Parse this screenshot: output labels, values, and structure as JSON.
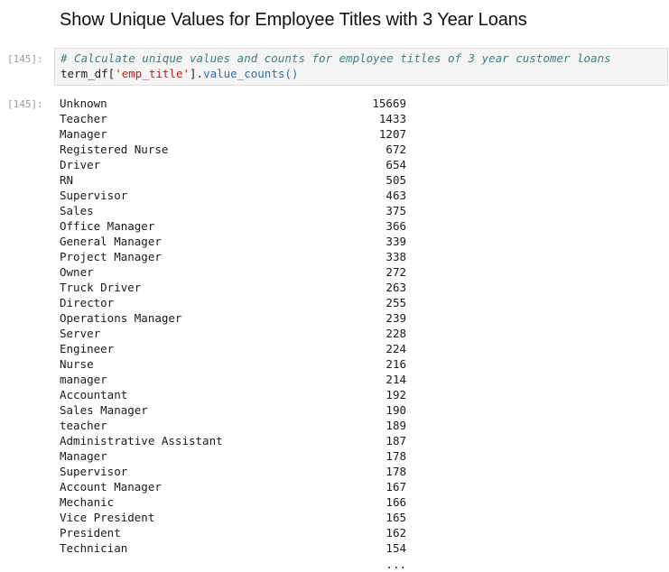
{
  "heading": "Show Unique Values for Employee Titles with 3 Year Loans",
  "input_prompt": "[145]:",
  "output_prompt": "[145]:",
  "code": {
    "comment": "# Calculate unique values and counts for employee titles of 3 year customer loans",
    "var": "term_df[",
    "key": "'emp_title'",
    "mid": "].",
    "method": "value_counts",
    "parens": "()"
  },
  "rows": [
    {
      "title": "Unknown",
      "count": "15669"
    },
    {
      "title": "Teacher",
      "count": "1433"
    },
    {
      "title": "Manager",
      "count": "1207"
    },
    {
      "title": "Registered Nurse",
      "count": "672"
    },
    {
      "title": "Driver",
      "count": "654"
    },
    {
      "title": "RN",
      "count": "505"
    },
    {
      "title": "Supervisor",
      "count": "463"
    },
    {
      "title": "Sales",
      "count": "375"
    },
    {
      "title": "Office Manager",
      "count": "366"
    },
    {
      "title": "General Manager",
      "count": "339"
    },
    {
      "title": "Project Manager",
      "count": "338"
    },
    {
      "title": "Owner",
      "count": "272"
    },
    {
      "title": "Truck Driver",
      "count": "263"
    },
    {
      "title": "Director",
      "count": "255"
    },
    {
      "title": "Operations Manager",
      "count": "239"
    },
    {
      "title": "Server",
      "count": "228"
    },
    {
      "title": "Engineer",
      "count": "224"
    },
    {
      "title": "Nurse",
      "count": "216"
    },
    {
      "title": "manager",
      "count": "214"
    },
    {
      "title": "Accountant",
      "count": "192"
    },
    {
      "title": "Sales Manager",
      "count": "190"
    },
    {
      "title": "teacher",
      "count": "189"
    },
    {
      "title": "Administrative Assistant",
      "count": "187"
    },
    {
      "title": "Manager ",
      "count": "178"
    },
    {
      "title": "Supervisor ",
      "count": "178"
    },
    {
      "title": "Account Manager",
      "count": "167"
    },
    {
      "title": "Mechanic",
      "count": "166"
    },
    {
      "title": "Vice President",
      "count": "165"
    },
    {
      "title": "President",
      "count": "162"
    },
    {
      "title": "Technician",
      "count": "154"
    }
  ],
  "ellipsis": "..."
}
